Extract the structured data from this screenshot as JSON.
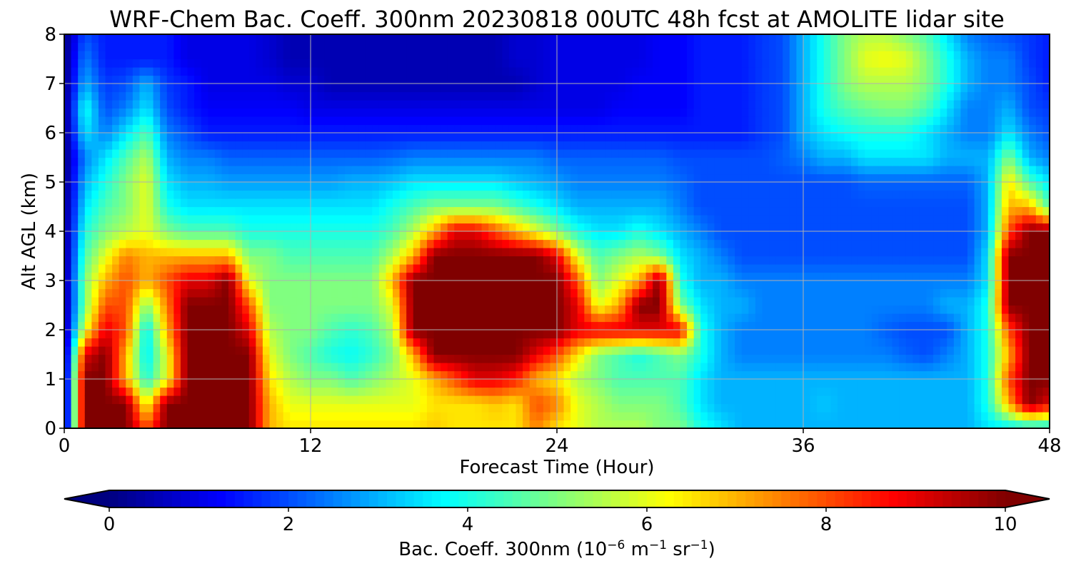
{
  "chart_data": {
    "type": "heatmap",
    "title": "WRF-Chem Bac. Coeff. 300nm  20230818 00UTC 48h fcst at AMOLITE lidar site",
    "xlabel": "Forecast Time (Hour)",
    "ylabel": "Alt AGL (km)",
    "xlim": [
      0,
      48
    ],
    "ylim": [
      0,
      8
    ],
    "xticks": [
      0,
      12,
      24,
      36,
      48
    ],
    "yticks": [
      0,
      1,
      2,
      3,
      4,
      5,
      6,
      7,
      8
    ],
    "grid": true,
    "colormap": "jet",
    "colorbar": {
      "orientation": "horizontal",
      "position": "bottom",
      "extend": "both",
      "range": [
        0,
        10
      ],
      "ticks": [
        0,
        2,
        4,
        6,
        8,
        10
      ],
      "label_main": "Bac. Coeff. 300nm  (10",
      "label_exp1": "−6",
      "label_mid": " m",
      "label_exp2": "−1",
      "label_mid2": " sr",
      "label_exp3": "−1",
      "label_end": ")"
    },
    "altitudes_km": [
      0,
      0.5,
      1,
      1.5,
      2,
      2.5,
      3,
      3.5,
      4,
      4.5,
      5,
      5.5,
      6,
      6.5,
      7,
      7.5,
      8
    ],
    "hours": [
      0,
      1,
      2,
      3,
      4,
      5,
      6,
      7,
      8,
      9,
      10,
      11,
      12,
      13,
      14,
      15,
      16,
      17,
      18,
      19,
      20,
      21,
      22,
      23,
      24,
      25,
      26,
      27,
      28,
      29,
      30,
      31,
      32,
      33,
      34,
      35,
      36,
      37,
      38,
      39,
      40,
      41,
      42,
      43,
      44,
      45,
      46,
      47,
      48
    ],
    "values": [
      [
        0,
        10,
        10,
        10,
        8,
        10,
        10,
        10,
        10,
        10,
        7,
        6.5,
        6.5,
        6.5,
        6.5,
        6.5,
        6.5,
        6.5,
        6.8,
        6.5,
        6.5,
        6.5,
        6.5,
        7.5,
        6.5,
        6,
        5.5,
        5.5,
        5.5,
        5,
        5,
        4,
        3.5,
        3,
        3,
        3,
        3,
        3,
        3,
        3,
        3,
        3,
        3,
        3,
        3,
        3.5,
        3.5,
        3.5,
        3.5
      ],
      [
        0,
        10,
        10,
        10,
        6,
        10,
        10,
        10,
        10,
        10,
        7,
        6,
        6,
        6,
        6,
        6,
        6,
        6,
        6.5,
        6.5,
        6.5,
        6.8,
        6.5,
        8,
        7.5,
        6,
        5.5,
        5,
        5,
        5,
        4.5,
        3.5,
        3,
        3,
        3,
        3,
        3,
        3.2,
        3,
        3,
        3,
        3,
        3,
        3,
        3,
        4,
        7,
        10,
        9
      ],
      [
        0,
        10,
        10,
        7,
        4,
        6,
        10,
        10,
        10,
        10,
        6.5,
        5.5,
        5,
        5,
        4.5,
        5,
        5.5,
        6,
        7,
        8,
        9,
        9,
        8.5,
        7,
        6.5,
        5.5,
        5,
        4.5,
        4.5,
        4.5,
        4.5,
        3.5,
        3,
        3,
        3,
        3,
        3,
        3,
        3,
        3,
        3,
        3,
        3,
        3,
        3,
        4,
        8,
        10,
        10
      ],
      [
        0,
        9,
        10,
        7,
        3.5,
        6,
        10,
        10,
        10,
        10,
        6,
        5,
        4.5,
        4,
        3.8,
        4.2,
        5,
        7,
        10,
        10,
        10,
        10,
        10,
        9,
        8,
        6.5,
        5,
        4.5,
        4,
        4.5,
        5,
        4,
        3,
        2.5,
        2.5,
        2.5,
        2.5,
        2.5,
        2.5,
        2.5,
        2.5,
        2.2,
        2,
        2.5,
        3,
        4,
        7,
        10,
        10
      ],
      [
        0,
        6,
        9,
        8,
        3.5,
        7,
        10,
        10,
        10,
        9,
        5.5,
        5,
        5,
        4.5,
        4.2,
        4.5,
        5.5,
        10,
        10,
        10,
        10,
        10,
        10,
        10,
        10,
        9,
        9,
        9,
        9,
        9,
        9,
        4,
        3,
        2.5,
        2.5,
        2.5,
        2.5,
        2.5,
        2.5,
        2.5,
        2.2,
        2,
        2,
        2,
        3,
        4,
        8,
        10,
        10
      ],
      [
        0,
        5,
        8,
        8,
        5,
        7.5,
        10,
        10,
        10,
        8,
        5,
        5,
        5,
        5,
        5,
        5,
        6,
        10,
        10,
        10,
        10,
        10,
        10,
        10,
        10,
        9,
        6,
        7,
        10,
        10,
        5,
        3.5,
        3,
        3,
        2.5,
        2.5,
        2.5,
        2.5,
        2.5,
        2.5,
        2.5,
        2.5,
        2.5,
        3,
        3,
        4,
        10,
        10,
        10
      ],
      [
        0,
        5,
        7,
        8,
        7,
        8,
        9,
        9,
        10,
        6,
        5,
        5,
        5,
        5,
        5,
        5,
        7,
        10,
        10,
        10,
        10,
        10,
        10,
        10,
        10,
        8,
        5,
        6,
        7,
        10,
        4,
        3,
        3,
        2.5,
        2.5,
        2.5,
        2.5,
        2.5,
        2.5,
        2.5,
        2.5,
        2.5,
        2.5,
        2.5,
        2.5,
        3.5,
        10,
        10,
        10
      ],
      [
        0,
        4.5,
        6,
        7.5,
        7,
        7,
        7,
        7,
        7,
        5,
        5,
        4.5,
        4.5,
        4.5,
        4.5,
        4.5,
        5.5,
        7,
        10,
        10,
        10,
        10,
        10,
        10,
        9,
        6,
        4.5,
        5,
        5.5,
        5,
        3.5,
        3,
        2.5,
        2,
        2,
        2,
        2,
        2,
        2,
        2,
        2,
        2,
        2,
        2,
        2,
        3.5,
        10,
        10,
        10
      ],
      [
        0,
        4,
        5,
        5.5,
        6,
        5,
        4.5,
        4.5,
        4.5,
        4,
        4,
        4,
        4,
        4,
        4,
        4,
        4.5,
        5.5,
        7,
        9,
        9,
        8,
        7,
        6,
        5,
        4,
        3.5,
        3.5,
        4,
        3.5,
        3,
        2.5,
        2,
        2,
        2,
        2,
        2,
        2,
        2,
        2,
        2,
        2,
        2,
        2,
        2,
        3,
        8,
        10,
        10
      ],
      [
        0,
        3.5,
        4.5,
        5,
        6,
        4,
        3.5,
        3.5,
        3.5,
        3.5,
        3.5,
        3.5,
        3.5,
        3.5,
        3.5,
        3.5,
        4,
        4.5,
        5,
        5,
        5,
        5,
        4.5,
        4,
        3.5,
        3,
        3,
        3,
        3,
        3,
        2.5,
        2,
        2,
        2,
        2,
        2,
        2,
        2,
        2,
        2,
        2,
        2,
        2,
        2,
        2,
        3,
        7,
        7,
        4.5
      ],
      [
        0,
        3,
        4,
        5,
        6,
        3.5,
        3,
        3,
        2.8,
        2.8,
        2.8,
        2.8,
        2.8,
        2.8,
        3,
        3,
        3.2,
        3.5,
        3.5,
        3.5,
        3.5,
        3.5,
        3.2,
        3,
        2.8,
        2.5,
        2.5,
        2.5,
        2.5,
        2.5,
        2.3,
        2,
        2,
        2,
        2,
        2,
        2,
        2,
        2,
        2.2,
        2.2,
        2.2,
        2.2,
        2.2,
        2.2,
        3,
        6.5,
        4.5,
        3.5
      ],
      [
        0,
        2.5,
        3.5,
        4.5,
        5.5,
        3,
        2.5,
        2.5,
        2.2,
        2.2,
        2.2,
        2.2,
        2.2,
        2.2,
        2.2,
        2.2,
        2.3,
        2.5,
        2.5,
        2.5,
        2.5,
        2.5,
        2.5,
        2.5,
        2.2,
        2.2,
        2.2,
        2.2,
        2.2,
        2.2,
        2,
        2,
        2,
        2,
        2,
        2.2,
        2.5,
        3,
        3,
        3.5,
        3.5,
        3.5,
        3.5,
        3,
        3,
        3,
        5,
        3,
        2.5
      ],
      [
        0,
        3.5,
        2.5,
        3.5,
        4.5,
        2.5,
        2,
        1.5,
        1.5,
        1.5,
        1.5,
        1.5,
        1.5,
        1.5,
        1.5,
        1.5,
        1.5,
        1.5,
        1.5,
        1.5,
        1.5,
        1.5,
        1.5,
        1.5,
        1.5,
        1.5,
        1.5,
        1.5,
        1.5,
        1.5,
        1.5,
        1.5,
        1.5,
        1.5,
        1.8,
        2,
        3,
        3.5,
        3.8,
        4,
        4,
        4,
        3.5,
        3,
        2.5,
        2.5,
        3.5,
        2.5,
        2
      ],
      [
        0,
        4,
        2,
        2.5,
        3.5,
        2,
        1.5,
        1.2,
        1.2,
        1.2,
        1.2,
        1.2,
        1,
        1,
        1,
        1,
        1,
        1,
        1,
        1,
        1,
        1,
        1,
        1,
        1,
        1,
        1,
        1.2,
        1.2,
        1.2,
        1.2,
        1.5,
        1.5,
        1.5,
        1.8,
        2,
        3,
        4,
        4.5,
        4.8,
        5,
        5,
        4.5,
        3.5,
        2.5,
        2.5,
        3,
        2,
        1.8
      ],
      [
        0,
        3,
        1.8,
        2,
        3,
        1.8,
        1.5,
        1,
        1,
        1,
        1,
        0.8,
        0.8,
        0.5,
        0.5,
        0.5,
        0.5,
        0.5,
        0.5,
        0.5,
        0.5,
        0.5,
        0.5,
        0.8,
        1,
        1,
        1,
        1,
        1.2,
        1.2,
        1.2,
        1.5,
        1.5,
        1.5,
        1.8,
        2,
        3,
        4,
        5,
        5.5,
        5.5,
        5.5,
        5,
        4,
        3,
        2.5,
        2.5,
        2,
        1.5
      ],
      [
        0,
        2.5,
        1.5,
        1.5,
        1.5,
        1.5,
        1,
        1,
        1,
        1,
        0.8,
        0.5,
        0.5,
        0.5,
        0.5,
        0.5,
        0.5,
        0.5,
        0.5,
        0.5,
        0.5,
        0.5,
        0.8,
        0.8,
        1,
        1,
        1,
        1,
        1,
        1.2,
        1.2,
        1.5,
        1.5,
        1.5,
        1.8,
        2,
        3,
        4,
        5,
        6,
        6.2,
        6,
        5,
        4,
        3,
        2.5,
        2.5,
        1.8,
        1.5
      ],
      [
        0,
        2,
        1.5,
        1.5,
        1.5,
        1.5,
        1,
        1,
        1,
        1,
        0.8,
        0.5,
        0.5,
        0.5,
        0.5,
        0.5,
        0.5,
        0.5,
        0.5,
        0.5,
        0.5,
        0.5,
        0.8,
        0.8,
        1,
        1,
        1,
        1,
        1,
        1.2,
        1.2,
        1.5,
        1.5,
        1.5,
        1.8,
        2,
        3,
        4,
        5,
        5.5,
        5.5,
        5,
        4.5,
        3.5,
        2.5,
        2.2,
        2,
        1.8,
        1.5
      ]
    ]
  }
}
